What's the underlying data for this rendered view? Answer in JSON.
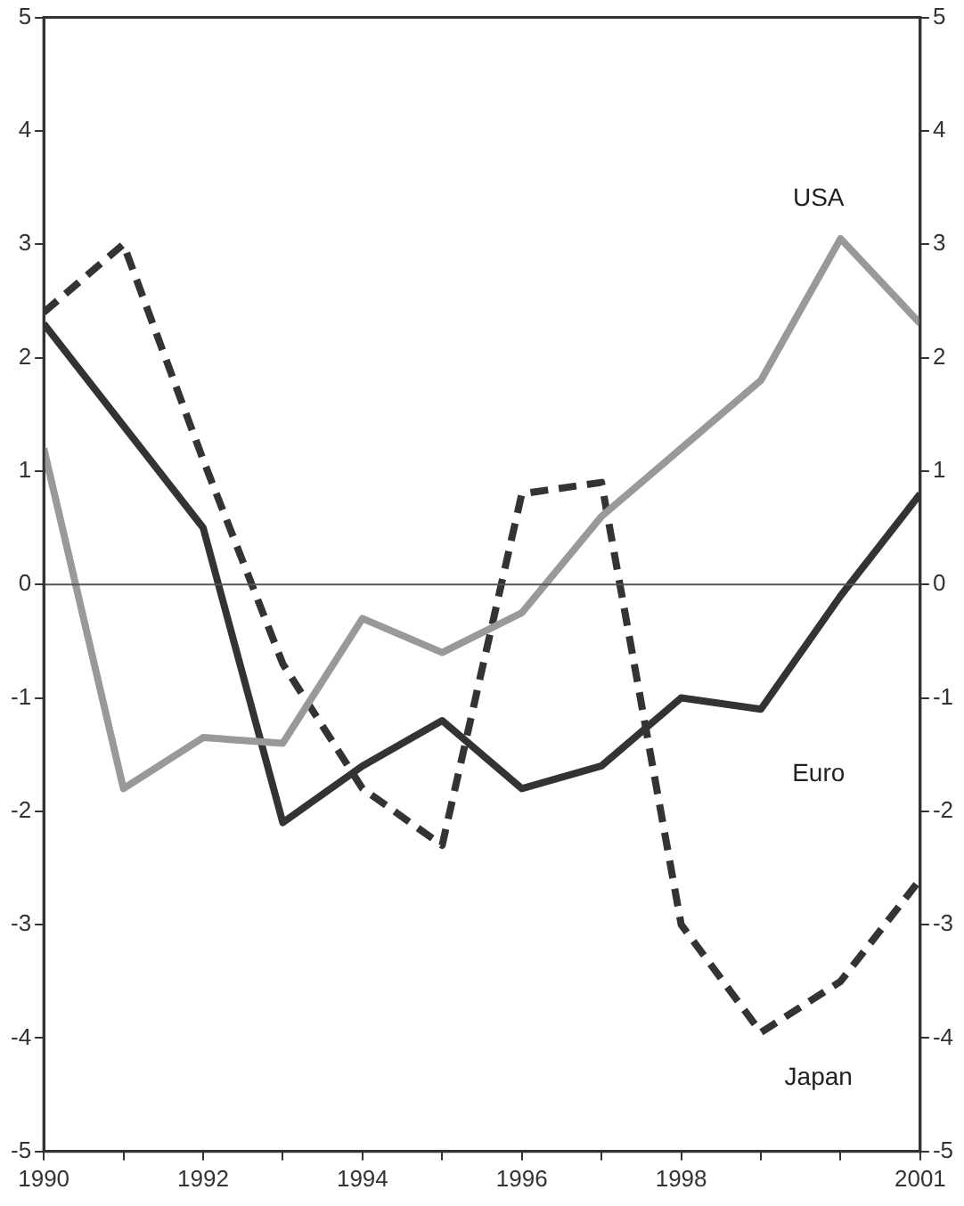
{
  "chart_data": {
    "type": "line",
    "x": [
      1990,
      1991,
      1992,
      1993,
      1994,
      1995,
      1996,
      1997,
      1998,
      1999,
      2000,
      2001
    ],
    "series": [
      {
        "name": "USA",
        "color": "#999999",
        "line_style": "solid",
        "values": [
          1.2,
          -1.8,
          -1.35,
          -1.4,
          -0.3,
          -0.6,
          -0.25,
          0.6,
          1.2,
          1.8,
          3.05,
          2.3
        ]
      },
      {
        "name": "Euro",
        "color": "#333333",
        "line_style": "solid",
        "values": [
          2.3,
          1.4,
          0.5,
          -2.1,
          -1.6,
          -1.2,
          -1.8,
          -1.6,
          -1.0,
          -1.1,
          -0.1,
          0.8
        ]
      },
      {
        "name": "Japan",
        "color": "#333333",
        "line_style": "dashed",
        "values": [
          2.4,
          3.0,
          1.1,
          -0.7,
          -1.8,
          -2.3,
          0.8,
          0.9,
          -3.0,
          -3.95,
          -3.5,
          -2.6
        ]
      }
    ],
    "xlim": [
      1990,
      2001
    ],
    "xticks": [
      1990,
      {
        "value": 1991,
        "label": null
      },
      1992,
      {
        "value": 1993,
        "label": null
      },
      1994,
      {
        "value": 1995,
        "label": null
      },
      1996,
      {
        "value": 1997,
        "label": null
      },
      1998,
      {
        "value": 1999,
        "label": null
      },
      {
        "value": 2000,
        "label": null
      },
      2001
    ],
    "ylim": [
      -5,
      5
    ],
    "yticks": [
      -5,
      -4,
      -3,
      -2,
      -1,
      0,
      1,
      2,
      3,
      4,
      5
    ],
    "y2lim": [
      -5,
      5
    ],
    "y2ticks": [
      -5,
      -4,
      -3,
      -2,
      -1,
      0,
      1,
      2,
      3,
      4,
      5
    ],
    "ref_lines": [
      {
        "axis": "y",
        "value": 0,
        "color": "#555555",
        "line_style": "solid"
      }
    ],
    "grid": false,
    "legend": false,
    "marker": "none"
  }
}
